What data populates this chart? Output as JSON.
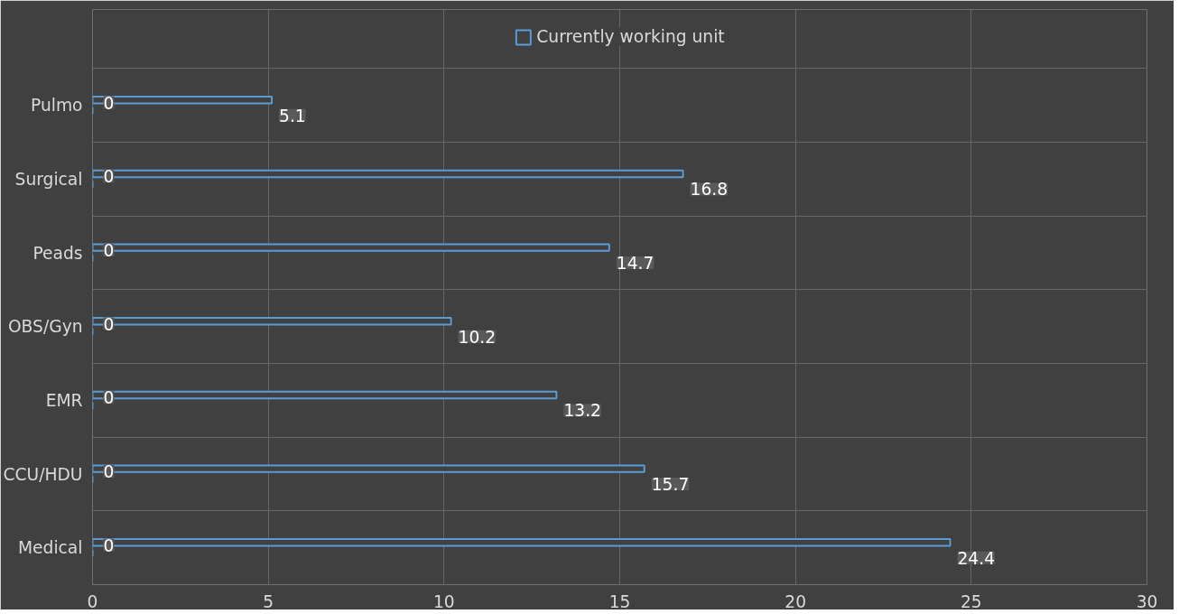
{
  "chart_data": {
    "type": "bar",
    "orientation": "horizontal",
    "categories": [
      "Pulmo",
      "Surgical",
      "Peads",
      "OBS/Gyn",
      "EMR",
      "CCU/HDU",
      "Medical"
    ],
    "series": [
      {
        "name": "Currently working unit",
        "color": "#5b9bd5",
        "values": [
          5.1,
          16.8,
          14.7,
          10.2,
          13.2,
          15.7,
          24.4
        ]
      },
      {
        "color": "#5b9bd5",
        "values": [
          0,
          0,
          0,
          0,
          0,
          0,
          0
        ]
      }
    ],
    "xlim": [
      0,
      30
    ],
    "xticks": [
      0,
      5,
      10,
      15,
      20,
      25,
      30
    ],
    "data_labels": true,
    "grid": true,
    "legend": "top"
  }
}
